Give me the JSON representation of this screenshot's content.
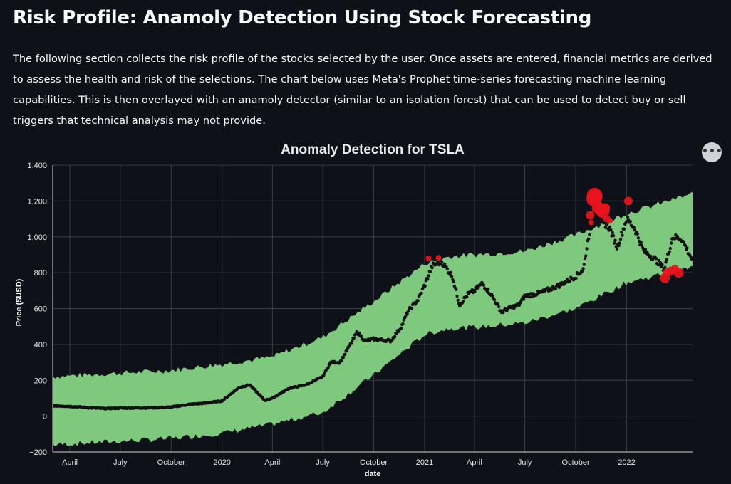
{
  "page": {
    "title": "Risk Profile: Anamoly Detection Using Stock Forecasting",
    "intro": "The following section collects the risk profile of the stocks selected by the user. Once assets are entered, financial metrics are derived to assess the health and risk of the selections. The chart below uses Meta's Prophet time-series forecasting machine learning capabilities. This is then overlayed with an anamoly detector (similar to an isolation forest) that can be used to detect buy or sell triggers that technical analysis may not provide.",
    "menu_glyph": "•••",
    "menu_icon": "more-options-icon"
  },
  "chart_data": {
    "type": "scatter",
    "title": "Anomaly Detection for TSLA",
    "xlabel": "date",
    "ylabel": "Price ($USD)",
    "ylim": [
      -200,
      1400
    ],
    "yticks": [
      -200,
      0,
      200,
      400,
      600,
      800,
      1000,
      1200,
      1400
    ],
    "ytick_labels": [
      "−200",
      "0",
      "200",
      "400",
      "600",
      "800",
      "1,000",
      "1,200",
      "1,400"
    ],
    "xlim": [
      "2019-03-01",
      "2022-04-30"
    ],
    "xticks": [
      {
        "date": "2019-04-01",
        "label": "April"
      },
      {
        "date": "2019-07-01",
        "label": "July"
      },
      {
        "date": "2019-10-01",
        "label": "October"
      },
      {
        "date": "2020-01-01",
        "label": "2020"
      },
      {
        "date": "2020-04-01",
        "label": "April"
      },
      {
        "date": "2020-07-01",
        "label": "July"
      },
      {
        "date": "2020-10-01",
        "label": "October"
      },
      {
        "date": "2021-01-01",
        "label": "2021"
      },
      {
        "date": "2021-04-01",
        "label": "April"
      },
      {
        "date": "2021-07-01",
        "label": "July"
      },
      {
        "date": "2021-10-01",
        "label": "October"
      },
      {
        "date": "2022-01-01",
        "label": "2022"
      }
    ],
    "grid": true,
    "colors": {
      "band": "#7fc97f",
      "price": "#111111",
      "anomaly": "#e8141c",
      "background": "#0e1117",
      "grid": "#3a3d44"
    },
    "forecast_band": [
      {
        "date": "2019-03-01",
        "lower": -160,
        "upper": 220
      },
      {
        "date": "2019-07-01",
        "lower": -140,
        "upper": 240
      },
      {
        "date": "2019-10-01",
        "lower": -125,
        "upper": 255
      },
      {
        "date": "2020-01-01",
        "lower": -95,
        "upper": 290
      },
      {
        "date": "2020-04-01",
        "lower": -45,
        "upper": 330
      },
      {
        "date": "2020-07-01",
        "lower": 20,
        "upper": 440
      },
      {
        "date": "2020-10-01",
        "lower": 230,
        "upper": 640
      },
      {
        "date": "2021-01-01",
        "lower": 455,
        "upper": 850
      },
      {
        "date": "2021-02-15",
        "lower": 490,
        "upper": 890
      },
      {
        "date": "2021-04-01",
        "lower": 495,
        "upper": 900
      },
      {
        "date": "2021-07-01",
        "lower": 520,
        "upper": 920
      },
      {
        "date": "2021-10-01",
        "lower": 600,
        "upper": 1010
      },
      {
        "date": "2022-01-01",
        "lower": 745,
        "upper": 1130
      },
      {
        "date": "2022-04-30",
        "lower": 830,
        "upper": 1240
      }
    ],
    "price": [
      {
        "date": "2019-03-01",
        "value": 58
      },
      {
        "date": "2019-04-01",
        "value": 55
      },
      {
        "date": "2019-05-01",
        "value": 48
      },
      {
        "date": "2019-06-01",
        "value": 42
      },
      {
        "date": "2019-07-01",
        "value": 45
      },
      {
        "date": "2019-08-01",
        "value": 46
      },
      {
        "date": "2019-09-01",
        "value": 47
      },
      {
        "date": "2019-10-01",
        "value": 50
      },
      {
        "date": "2019-11-01",
        "value": 65
      },
      {
        "date": "2019-12-01",
        "value": 72
      },
      {
        "date": "2020-01-01",
        "value": 85
      },
      {
        "date": "2020-02-01",
        "value": 160
      },
      {
        "date": "2020-02-20",
        "value": 175
      },
      {
        "date": "2020-03-18",
        "value": 88
      },
      {
        "date": "2020-04-01",
        "value": 100
      },
      {
        "date": "2020-05-01",
        "value": 155
      },
      {
        "date": "2020-06-01",
        "value": 175
      },
      {
        "date": "2020-07-01",
        "value": 220
      },
      {
        "date": "2020-07-15",
        "value": 300
      },
      {
        "date": "2020-08-01",
        "value": 300
      },
      {
        "date": "2020-08-20",
        "value": 400
      },
      {
        "date": "2020-09-01",
        "value": 470
      },
      {
        "date": "2020-09-15",
        "value": 420
      },
      {
        "date": "2020-10-01",
        "value": 430
      },
      {
        "date": "2020-11-01",
        "value": 420
      },
      {
        "date": "2020-11-20",
        "value": 500
      },
      {
        "date": "2020-12-01",
        "value": 580
      },
      {
        "date": "2020-12-20",
        "value": 650
      },
      {
        "date": "2021-01-01",
        "value": 730
      },
      {
        "date": "2021-01-15",
        "value": 840
      },
      {
        "date": "2021-02-01",
        "value": 860
      },
      {
        "date": "2021-02-20",
        "value": 780
      },
      {
        "date": "2021-03-05",
        "value": 620
      },
      {
        "date": "2021-03-20",
        "value": 680
      },
      {
        "date": "2021-04-01",
        "value": 700
      },
      {
        "date": "2021-04-15",
        "value": 740
      },
      {
        "date": "2021-05-01",
        "value": 680
      },
      {
        "date": "2021-05-20",
        "value": 580
      },
      {
        "date": "2021-06-01",
        "value": 600
      },
      {
        "date": "2021-06-20",
        "value": 620
      },
      {
        "date": "2021-07-01",
        "value": 670
      },
      {
        "date": "2021-08-01",
        "value": 690
      },
      {
        "date": "2021-09-01",
        "value": 730
      },
      {
        "date": "2021-10-01",
        "value": 780
      },
      {
        "date": "2021-10-15",
        "value": 820
      },
      {
        "date": "2021-10-25",
        "value": 1020
      },
      {
        "date": "2021-11-05",
        "value": 1150
      },
      {
        "date": "2021-11-20",
        "value": 1080
      },
      {
        "date": "2021-12-01",
        "value": 1050
      },
      {
        "date": "2021-12-15",
        "value": 940
      },
      {
        "date": "2022-01-01",
        "value": 1100
      },
      {
        "date": "2022-01-15",
        "value": 1050
      },
      {
        "date": "2022-02-01",
        "value": 920
      },
      {
        "date": "2022-02-20",
        "value": 880
      },
      {
        "date": "2022-03-10",
        "value": 820
      },
      {
        "date": "2022-03-25",
        "value": 1000
      },
      {
        "date": "2022-04-10",
        "value": 990
      },
      {
        "date": "2022-04-30",
        "value": 870
      }
    ],
    "anomalies": [
      {
        "date": "2021-01-08",
        "value": 880,
        "size": 4
      },
      {
        "date": "2021-01-26",
        "value": 883,
        "size": 4
      },
      {
        "date": "2021-10-27",
        "value": 1120,
        "size": 6
      },
      {
        "date": "2021-10-29",
        "value": 1080,
        "size": 4
      },
      {
        "date": "2021-11-02",
        "value": 1210,
        "size": 10
      },
      {
        "date": "2021-11-04",
        "value": 1230,
        "size": 11
      },
      {
        "date": "2021-11-05",
        "value": 1220,
        "size": 10
      },
      {
        "date": "2021-11-08",
        "value": 1160,
        "size": 7
      },
      {
        "date": "2021-11-10",
        "value": 1180,
        "size": 6
      },
      {
        "date": "2021-11-15",
        "value": 1150,
        "size": 8
      },
      {
        "date": "2021-11-19",
        "value": 1140,
        "size": 9
      },
      {
        "date": "2021-11-23",
        "value": 1160,
        "size": 7
      },
      {
        "date": "2021-11-26",
        "value": 1100,
        "size": 5
      },
      {
        "date": "2021-12-02",
        "value": 1090,
        "size": 4
      },
      {
        "date": "2022-01-04",
        "value": 1200,
        "size": 6
      },
      {
        "date": "2022-03-11",
        "value": 770,
        "size": 7
      },
      {
        "date": "2022-03-15",
        "value": 800,
        "size": 6
      },
      {
        "date": "2022-03-22",
        "value": 810,
        "size": 6
      },
      {
        "date": "2022-03-29",
        "value": 820,
        "size": 6
      },
      {
        "date": "2022-04-05",
        "value": 800,
        "size": 7
      }
    ]
  }
}
